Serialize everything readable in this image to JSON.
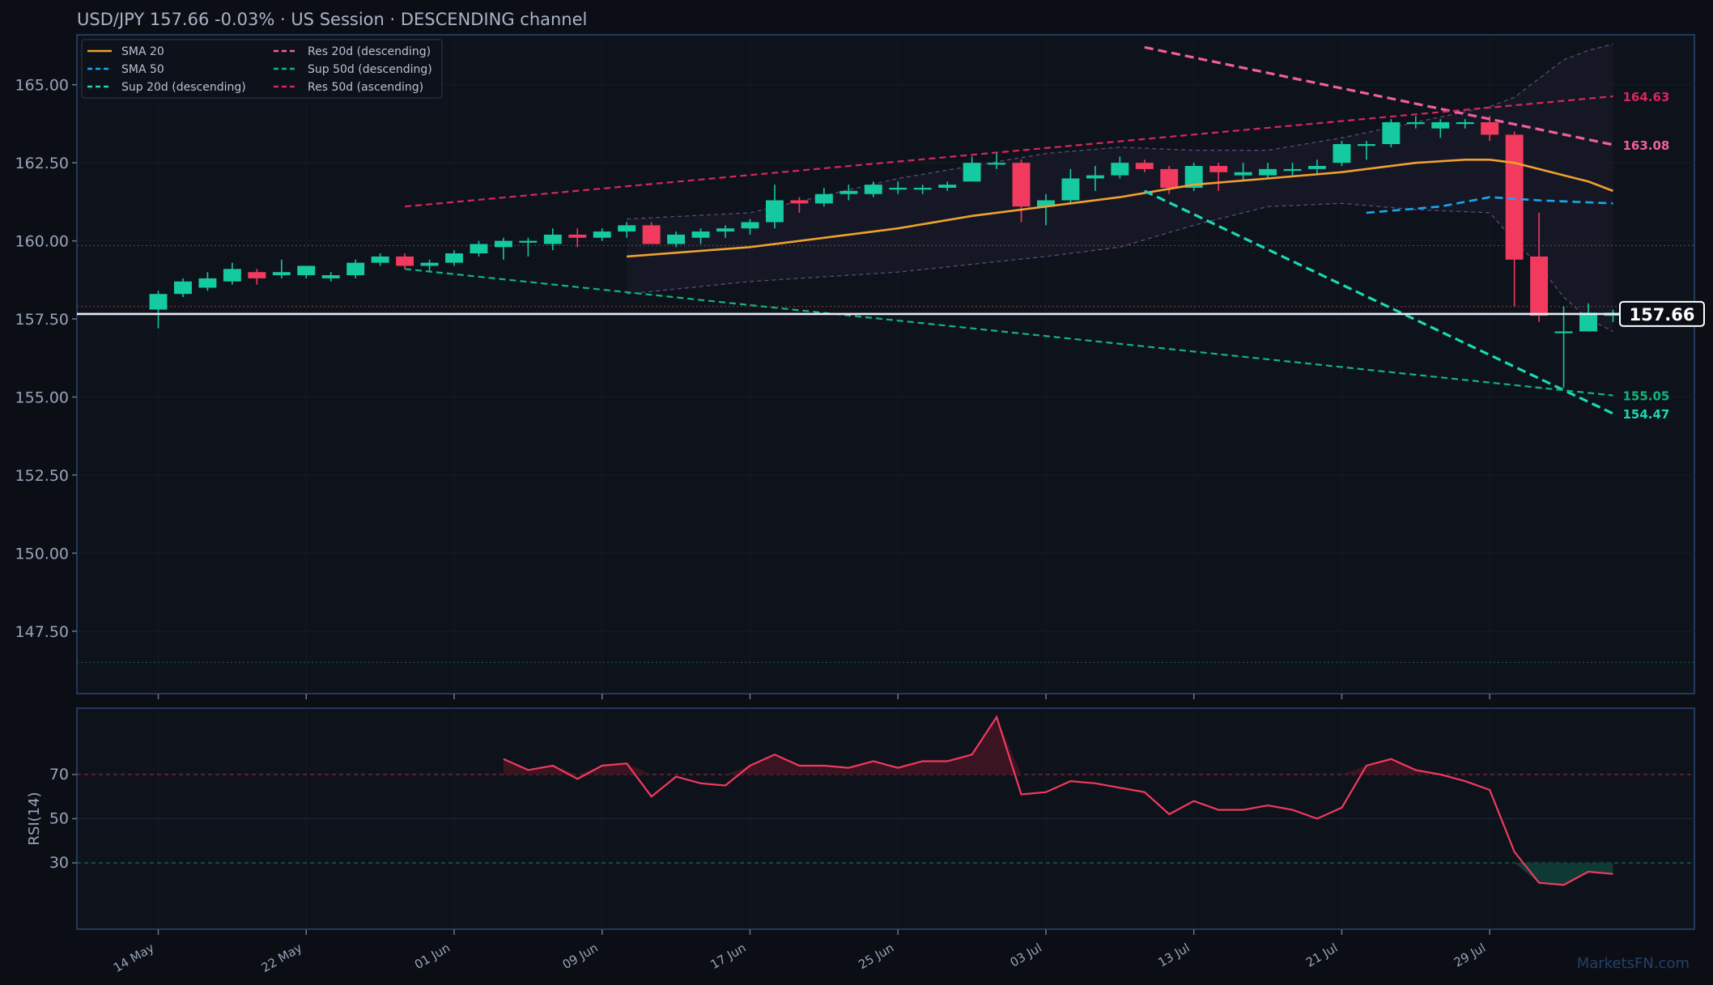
{
  "header": {
    "title": "USD/JPY   157.66   -0.03%  ·  US Session  ·  DESCENDING channel"
  },
  "watermark": "MarketsFN.com",
  "colors": {
    "background": "#0b0e14",
    "panel": "#0e121b",
    "up": "#15c9a0",
    "down": "#f23a5e",
    "sma20": "#f0a030",
    "sma50": "#1aa7f0",
    "sup20": "#1ad9b4",
    "sup50": "#12b47c",
    "res20": "#f0609a",
    "res50": "#d6285c",
    "rsi": "#f23a5e",
    "price_line": "#e8ecf4"
  },
  "legend": [
    {
      "label": "SMA 20",
      "style": "solid",
      "color": "#f0a030"
    },
    {
      "label": "SMA 50",
      "style": "dashed",
      "color": "#1aa7f0"
    },
    {
      "label": "Sup 20d (descending)",
      "style": "dashed",
      "color": "#1ad9b4"
    },
    {
      "label": "Res 20d (descending)",
      "style": "dashed",
      "color": "#f0609a"
    },
    {
      "label": "Sup 50d (descending)",
      "style": "dashed",
      "color": "#12b47c"
    },
    {
      "label": "Res 50d (ascending)",
      "style": "dashed",
      "color": "#d6285c"
    }
  ],
  "chart_data": {
    "type": "candlestick",
    "symbol": "USD/JPY",
    "last_price": 157.66,
    "last_price_label": "157.66",
    "change_pct": -0.03,
    "x_ticks": [
      {
        "label": "14 May",
        "index": 0
      },
      {
        "label": "22 May",
        "index": 6
      },
      {
        "label": "01 Jun",
        "index": 12
      },
      {
        "label": "09 Jun",
        "index": 18
      },
      {
        "label": "17 Jun",
        "index": 24
      },
      {
        "label": "25 Jun",
        "index": 30
      },
      {
        "label": "03 Jul",
        "index": 36
      },
      {
        "label": "13 Jul",
        "index": 42
      },
      {
        "label": "21 Jul",
        "index": 48
      },
      {
        "label": "29 Jul",
        "index": 54
      }
    ],
    "x_range": [
      -3.3,
      62.3
    ],
    "ylim": [
      145.5,
      166.6
    ],
    "y_ticks": [
      "147.50",
      "150.00",
      "152.50",
      "155.00",
      "157.50",
      "160.00",
      "162.50",
      "165.00"
    ],
    "y_tick_values": [
      147.5,
      150.0,
      152.5,
      155.0,
      157.5,
      160.0,
      162.5,
      165.0
    ],
    "candles": [
      [
        157.8,
        158.4,
        157.2,
        158.3
      ],
      [
        158.3,
        158.8,
        158.2,
        158.7
      ],
      [
        158.5,
        159.0,
        158.4,
        158.8
      ],
      [
        158.7,
        159.3,
        158.6,
        159.1
      ],
      [
        159.0,
        159.1,
        158.6,
        158.8
      ],
      [
        158.9,
        159.4,
        158.8,
        159.0
      ],
      [
        158.9,
        159.2,
        158.8,
        159.2
      ],
      [
        158.8,
        159.0,
        158.7,
        158.9
      ],
      [
        158.9,
        159.4,
        158.8,
        159.3
      ],
      [
        159.3,
        159.6,
        159.2,
        159.5
      ],
      [
        159.5,
        159.6,
        159.1,
        159.2
      ],
      [
        159.2,
        159.4,
        159.0,
        159.3
      ],
      [
        159.3,
        159.7,
        159.2,
        159.6
      ],
      [
        159.6,
        160.0,
        159.5,
        159.9
      ],
      [
        159.8,
        160.1,
        159.4,
        160.0
      ],
      [
        160.0,
        160.1,
        159.5,
        160.0
      ],
      [
        159.9,
        160.4,
        159.7,
        160.2
      ],
      [
        160.2,
        160.4,
        159.8,
        160.1
      ],
      [
        160.1,
        160.4,
        160.0,
        160.3
      ],
      [
        160.3,
        160.6,
        160.1,
        160.5
      ],
      [
        160.5,
        160.6,
        159.9,
        159.9
      ],
      [
        159.9,
        160.3,
        159.8,
        160.2
      ],
      [
        160.1,
        160.4,
        159.9,
        160.3
      ],
      [
        160.3,
        160.5,
        160.1,
        160.4
      ],
      [
        160.4,
        160.7,
        160.2,
        160.6
      ],
      [
        160.6,
        161.8,
        160.4,
        161.3
      ],
      [
        161.3,
        161.4,
        160.9,
        161.2
      ],
      [
        161.2,
        161.7,
        161.1,
        161.5
      ],
      [
        161.5,
        161.8,
        161.3,
        161.6
      ],
      [
        161.5,
        161.9,
        161.4,
        161.8
      ],
      [
        161.7,
        161.9,
        161.5,
        161.7
      ],
      [
        161.7,
        161.8,
        161.5,
        161.7
      ],
      [
        161.7,
        161.9,
        161.6,
        161.8
      ],
      [
        161.9,
        162.7,
        161.9,
        162.5
      ],
      [
        162.5,
        162.8,
        162.3,
        162.5
      ],
      [
        162.5,
        162.6,
        160.6,
        161.1
      ],
      [
        161.1,
        161.5,
        160.5,
        161.3
      ],
      [
        161.3,
        162.3,
        161.2,
        162.0
      ],
      [
        162.0,
        162.4,
        161.6,
        162.1
      ],
      [
        162.1,
        162.7,
        162.0,
        162.5
      ],
      [
        162.5,
        162.6,
        162.2,
        162.3
      ],
      [
        162.3,
        162.4,
        161.5,
        161.7
      ],
      [
        161.7,
        162.5,
        161.6,
        162.4
      ],
      [
        162.4,
        162.5,
        161.6,
        162.2
      ],
      [
        162.1,
        162.5,
        161.9,
        162.2
      ],
      [
        162.1,
        162.5,
        162.0,
        162.3
      ],
      [
        162.3,
        162.5,
        162.1,
        162.3
      ],
      [
        162.3,
        162.6,
        162.1,
        162.4
      ],
      [
        162.5,
        163.2,
        162.4,
        163.1
      ],
      [
        163.1,
        163.2,
        162.6,
        163.1
      ],
      [
        163.1,
        163.9,
        163.0,
        163.8
      ],
      [
        163.8,
        164.0,
        163.6,
        163.8
      ],
      [
        163.6,
        163.9,
        163.3,
        163.8
      ],
      [
        163.8,
        163.9,
        163.6,
        163.8
      ],
      [
        163.8,
        164.0,
        163.2,
        163.4
      ],
      [
        163.4,
        163.5,
        157.9,
        159.4
      ],
      [
        159.5,
        160.9,
        157.4,
        157.6
      ],
      [
        157.1,
        157.9,
        155.3,
        157.1
      ],
      [
        157.1,
        158.0,
        157.1,
        157.7
      ],
      [
        157.6,
        157.8,
        157.4,
        157.7
      ]
    ],
    "sma20": {
      "x": [
        19,
        24,
        27,
        30,
        33,
        36,
        39,
        42,
        45,
        48,
        51,
        53,
        54,
        55,
        56,
        57,
        58,
        59
      ],
      "values": [
        159.5,
        159.8,
        160.1,
        160.4,
        160.8,
        161.1,
        161.4,
        161.8,
        162.0,
        162.2,
        162.5,
        162.6,
        162.6,
        162.5,
        162.3,
        162.1,
        161.9,
        161.6
      ]
    },
    "sma50": {
      "x": [
        49,
        52,
        54,
        56,
        59
      ],
      "values": [
        160.9,
        161.1,
        161.4,
        161.3,
        161.2
      ]
    },
    "bollinger_upper": {
      "x": [
        19,
        24,
        30,
        36,
        39,
        42,
        45,
        48,
        51,
        54,
        55,
        56,
        57,
        58,
        59
      ],
      "values": [
        160.7,
        160.9,
        162.0,
        162.8,
        163.0,
        162.9,
        162.9,
        163.3,
        163.8,
        164.3,
        164.6,
        165.2,
        165.8,
        166.1,
        166.3
      ]
    },
    "bollinger_lower": {
      "x": [
        19,
        24,
        30,
        36,
        39,
        42,
        45,
        48,
        51,
        54,
        55,
        56,
        57,
        58,
        59
      ],
      "values": [
        158.3,
        158.7,
        159.0,
        159.5,
        159.8,
        160.5,
        161.1,
        161.2,
        161.0,
        160.9,
        160.0,
        159.2,
        158.2,
        157.5,
        157.1
      ]
    },
    "trendlines": [
      {
        "name": "Sup 20d (descending)",
        "x": [
          40,
          59
        ],
        "values": [
          161.6,
          154.47
        ],
        "label": "154.47"
      },
      {
        "name": "Res 20d (descending)",
        "x": [
          40,
          59
        ],
        "values": [
          166.2,
          163.08
        ],
        "label": "163.08"
      },
      {
        "name": "Sup 50d (descending)",
        "x": [
          10,
          59
        ],
        "values": [
          159.1,
          155.05
        ],
        "label": "155.05"
      },
      {
        "name": "Res 50d (ascending)",
        "x": [
          10,
          59
        ],
        "values": [
          161.1,
          164.63
        ],
        "label": "164.63"
      }
    ],
    "horizontal_levels": [
      159.85,
      157.9,
      146.5
    ],
    "rsi": {
      "label": "RSI(14)",
      "ylim": [
        0,
        100
      ],
      "y_ticks": [
        "30",
        "50",
        "70"
      ],
      "y_tick_values": [
        30,
        50,
        70
      ],
      "overbought": 70,
      "oversold": 30,
      "x_start": 14,
      "values": [
        77,
        72,
        74,
        68,
        74,
        75,
        60,
        69,
        66,
        65,
        74,
        79,
        74,
        74,
        73,
        76,
        73,
        76,
        76,
        79,
        96,
        61,
        62,
        67,
        66,
        64,
        62,
        52,
        58,
        54,
        54,
        56,
        54,
        50,
        55,
        74,
        77,
        72,
        70,
        67,
        63,
        35,
        21,
        20,
        26,
        25
      ]
    }
  }
}
